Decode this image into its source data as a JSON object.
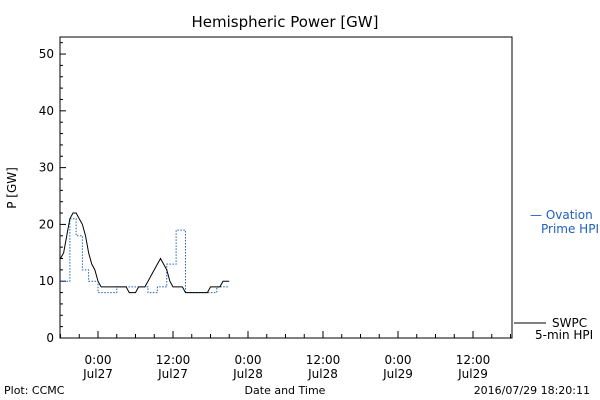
{
  "chart_data": {
    "type": "line",
    "title": "Hemispheric Power [GW]",
    "ylabel": "P [GW]",
    "xlabel": "Date and Time",
    "ylim": [
      0,
      53
    ],
    "xlim": [
      -6,
      21
    ],
    "x_unit": "hours relative to 2016/07/27 00:00",
    "y_ticks": [
      0,
      10,
      20,
      30,
      40,
      50
    ],
    "x_ticks": [
      {
        "x": 0,
        "time": "0:00",
        "date": "Jul27"
      },
      {
        "x": 12,
        "time": "12:00",
        "date": "Jul27"
      },
      {
        "x": 24,
        "time": "0:00",
        "date": "Jul28"
      },
      {
        "x": 36,
        "time": "12:00",
        "date": "Jul28"
      },
      {
        "x": 48,
        "time": "0:00",
        "date": "Jul29"
      },
      {
        "x": 60,
        "time": "12:00",
        "date": "Jul29"
      }
    ],
    "series": [
      {
        "name": "Ovation Prime HPI",
        "style": "dotted-step",
        "color": "#1f5fbf",
        "x": [
          -6,
          -5.5,
          -5,
          -4.5,
          -4,
          -3.5,
          -3,
          -2.5,
          -2,
          -1.5,
          -1,
          -0.5,
          0,
          0.5,
          1,
          1.5,
          2,
          2.5,
          3,
          3.5,
          4,
          4.5,
          5,
          5.5,
          6,
          6.5,
          7,
          7.5,
          8,
          8.5,
          9,
          9.5,
          10,
          10.5,
          11,
          11.5,
          12,
          12.5,
          13,
          13.5,
          14,
          14.5,
          15,
          15.5,
          16,
          16.5,
          17,
          17.5,
          18,
          18.5,
          19,
          19.5,
          20,
          20.5,
          21
        ],
        "values": [
          10,
          10,
          10,
          21,
          21,
          18,
          18,
          12,
          12,
          10,
          10,
          10,
          8,
          8,
          8,
          8,
          8,
          8,
          9,
          9,
          9,
          9,
          9,
          9,
          9,
          9,
          9,
          9,
          8,
          8,
          8,
          9,
          9,
          9,
          13,
          13,
          13,
          19,
          19,
          19,
          8,
          8,
          8,
          8,
          8,
          8,
          8,
          8,
          8,
          8,
          9,
          9,
          9,
          9,
          9
        ]
      },
      {
        "name": "SWPC 5-min HPI",
        "style": "solid",
        "color": "#000000",
        "x": [
          -6,
          -5.5,
          -5,
          -4.5,
          -4,
          -3.5,
          -3,
          -2.5,
          -2,
          -1.5,
          -1,
          -0.5,
          0,
          0.5,
          1,
          1.5,
          2,
          2.5,
          3,
          3.5,
          4,
          4.5,
          5,
          5.5,
          6,
          6.5,
          7,
          7.5,
          8,
          8.5,
          9,
          9.5,
          10,
          10.5,
          11,
          11.5,
          12,
          12.5,
          13,
          13.5,
          14,
          14.5,
          15,
          15.5,
          16,
          16.5,
          17,
          17.5,
          18,
          18.5,
          19,
          19.5,
          20,
          20.5,
          21
        ],
        "values": [
          14,
          15,
          18,
          21,
          22,
          22,
          21,
          20,
          18,
          15,
          13,
          12,
          10,
          9,
          9,
          9,
          9,
          9,
          9,
          9,
          9,
          9,
          8,
          8,
          8,
          9,
          9,
          9,
          10,
          11,
          12,
          13,
          14,
          13,
          12,
          10,
          9,
          9,
          9,
          9,
          8,
          8,
          8,
          8,
          8,
          8,
          8,
          8,
          9,
          9,
          9,
          9,
          10,
          10,
          10
        ]
      }
    ],
    "legend": [
      "Ovation Prime HPI",
      "SWPC 5-min HPI"
    ]
  },
  "footer": {
    "left": "Plot: CCMC",
    "center": "Date and Time",
    "right": "2016/07/29 18:20:11"
  },
  "legend_labels": {
    "blue_line1": "— Ovation",
    "blue_line2": "Prime HPI",
    "black_line1": "SWPC",
    "black_line2": "5-min HPI"
  },
  "colors": {
    "ovation": "#1f5fbf",
    "swpc": "#000000"
  }
}
